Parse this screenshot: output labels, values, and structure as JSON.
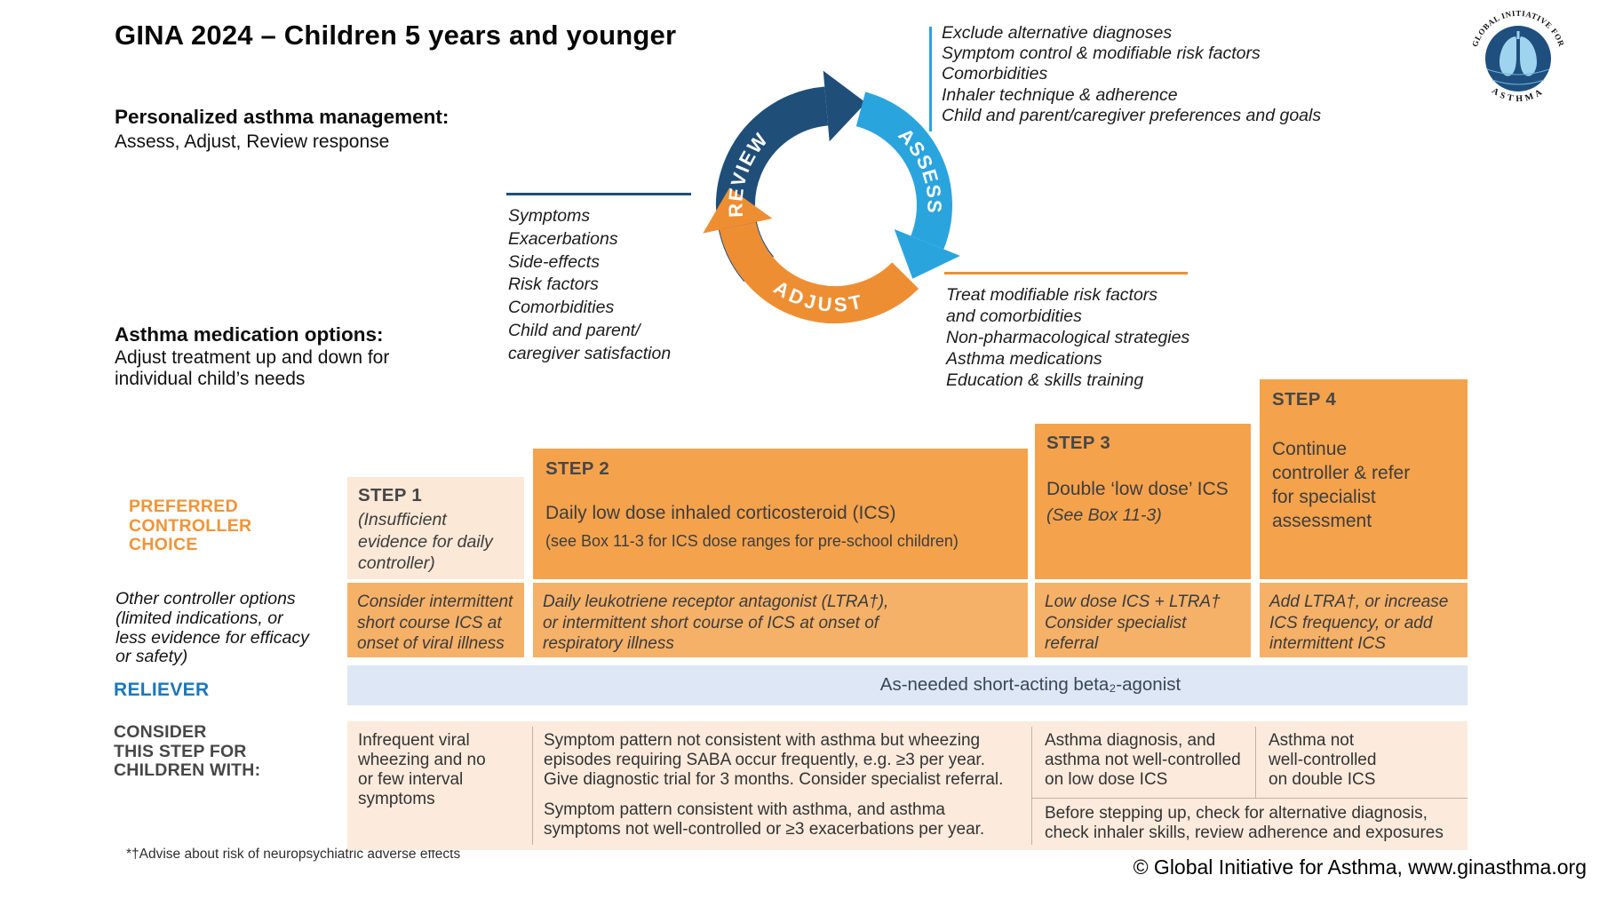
{
  "title": "GINA 2024 – Children 5 years and younger",
  "personalized": {
    "heading": "Personalized asthma management:",
    "subheading": "Assess, Adjust, Review response"
  },
  "medication": {
    "heading": "Asthma medication options:",
    "lines": [
      "Adjust treatment up and down for",
      "individual child’s needs"
    ]
  },
  "cycle": {
    "assess": {
      "label": "ASSESS",
      "color": "#2AA4DD",
      "items": [
        "Exclude alternative diagnoses",
        "Symptom control & modifiable risk factors",
        "Comorbidities",
        "Inhaler technique & adherence",
        "Child and parent/caregiver preferences and goals"
      ]
    },
    "review": {
      "label": "REVIEW",
      "color": "#1F4E79",
      "items": [
        "Symptoms",
        "Exacerbations",
        "Side-effects",
        "Risk factors",
        "Comorbidities",
        "Child and parent/",
        "caregiver satisfaction"
      ]
    },
    "adjust": {
      "label": "ADJUST",
      "color": "#EE8E33",
      "items": [
        "Treat modifiable risk factors",
        "and comorbidities",
        "Non-pharmacological strategies",
        "Asthma medications",
        "Education & skills training"
      ]
    }
  },
  "table": {
    "row_labels": {
      "preferred": [
        "PREFERRED",
        "CONTROLLER",
        "CHOICE"
      ],
      "other": [
        "Other controller options",
        "(limited indications, or",
        "less evidence for efficacy",
        "or safety)"
      ],
      "reliever": "RELIEVER",
      "consider": [
        "CONSIDER",
        "THIS STEP FOR",
        "CHILDREN WITH:"
      ]
    },
    "steps": [
      {
        "title": "STEP 1",
        "lines": [
          "(Insufficient",
          "evidence for daily",
          "controller)"
        ]
      },
      {
        "title": "STEP 2",
        "body": "Daily low dose inhaled corticosteroid (ICS)",
        "note": "(see Box 11-3 for ICS dose ranges for pre-school children)"
      },
      {
        "title": "STEP 3",
        "body": "Double ‘low dose’ ICS",
        "note": "(See Box 11-3)"
      },
      {
        "title": "STEP 4",
        "lines": [
          "Continue",
          "controller & refer",
          "for specialist",
          "assessment"
        ]
      }
    ],
    "other_row": {
      "col1": [
        "Consider intermittent",
        "short course ICS at",
        "onset of viral illness"
      ],
      "col2": [
        "Daily leukotriene receptor antagonist (LTRA†),",
        "or intermittent short course of ICS at onset of",
        "respiratory illness"
      ],
      "col3": [
        "Low dose ICS + LTRA†",
        "Consider specialist",
        "referral"
      ],
      "col4": [
        "Add LTRA†, or increase",
        "ICS frequency, or add",
        "intermittent ICS"
      ]
    },
    "reliever_band": "As-needed short-acting beta₂-agonist",
    "consider_row": {
      "col1": [
        "Infrequent viral",
        "wheezing and no",
        "or few interval",
        "symptoms"
      ],
      "col2_p1": [
        "Symptom pattern not consistent with asthma but wheezing",
        "episodes requiring SABA occur frequently, e.g. ≥3 per year.",
        "Give diagnostic trial for 3 months. Consider specialist referral."
      ],
      "col2_p2": [
        "Symptom pattern consistent with asthma, and asthma",
        "symptoms not well-controlled or ≥3 exacerbations per year."
      ],
      "col3": [
        "Asthma diagnosis, and",
        "asthma not well-controlled",
        "on low dose ICS"
      ],
      "col4": [
        "Asthma not",
        "well-controlled",
        "on double ICS"
      ],
      "col34_bottom": [
        "Before stepping up, check for alternative diagnosis,",
        "check inhaler skills, review adherence and exposures"
      ]
    },
    "footnote": "*†Advise about risk of neuropsychiatric adverse effects"
  },
  "logo": {
    "arc_top": "GLOBAL INITIATIVE FOR",
    "arc_bottom": "ASTHMA"
  },
  "copyright": "© Global Initiative for Asthma, www.ginasthma.org",
  "colors": {
    "navy": "#1F4E79",
    "blue": "#2AA4DD",
    "orange": "#EE8E33",
    "step_orange": "#F5A24D",
    "row_orange": "#F6B169",
    "pale_peach": "#FBE8D6",
    "consider_bg": "#FCEBDD",
    "reliever_bg": "#DDE7F5",
    "reliever_text": "#1C76BC",
    "preferred_text": "#F09437"
  }
}
